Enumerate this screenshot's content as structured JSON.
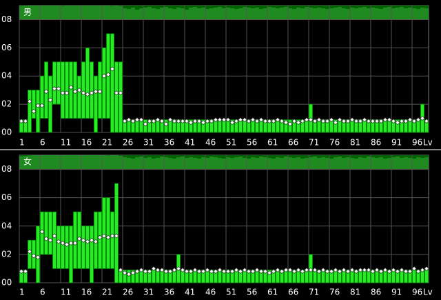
{
  "chart_data": [
    {
      "type": "range_bar",
      "title": "男",
      "x_unit": "Lv",
      "x": [
        1,
        2,
        3,
        4,
        5,
        6,
        7,
        8,
        9,
        10,
        11,
        12,
        13,
        14,
        15,
        16,
        17,
        18,
        19,
        20,
        21,
        22,
        23,
        24,
        25,
        26,
        27,
        28,
        29,
        30,
        31,
        32,
        33,
        34,
        35,
        36,
        37,
        38,
        39,
        40,
        41,
        42,
        43,
        44,
        45,
        46,
        47,
        48,
        49,
        50,
        51,
        52,
        53,
        54,
        55,
        56,
        57,
        58,
        59,
        60,
        61,
        62,
        63,
        64,
        65,
        66,
        67,
        68,
        69,
        70,
        71,
        72,
        73,
        74,
        75,
        76,
        77,
        78,
        79,
        80,
        81,
        82,
        83,
        84,
        85,
        86,
        87,
        88,
        89,
        90,
        91,
        92,
        93,
        94,
        95,
        96,
        97,
        98,
        99
      ],
      "xlim": [
        0.5,
        99.5
      ],
      "xticks": [
        1,
        6,
        11,
        16,
        21,
        26,
        31,
        36,
        41,
        46,
        51,
        56,
        61,
        66,
        71,
        76,
        81,
        86,
        91,
        96
      ],
      "ylim": [
        0,
        9
      ],
      "yticks": [
        {
          "value": 0,
          "label": "00"
        },
        {
          "value": 2,
          "label": "02"
        },
        {
          "value": 4,
          "label": "04"
        },
        {
          "value": 6,
          "label": "06"
        },
        {
          "value": 8,
          "label": "08"
        }
      ],
      "grid": true,
      "series": [
        {
          "color": "#22ee22",
          "low": [
            0,
            0,
            0,
            1,
            0,
            1,
            1,
            0,
            2,
            2,
            1,
            1,
            1,
            1,
            1,
            1,
            1,
            1,
            0,
            1,
            1,
            1,
            0,
            0,
            0,
            0,
            0,
            0,
            0,
            0,
            0,
            0,
            0,
            0,
            0,
            0,
            0,
            0,
            0,
            0,
            0,
            0,
            0,
            0,
            0,
            0,
            0,
            0,
            0,
            0,
            0,
            0,
            0,
            0,
            0,
            0,
            0,
            0,
            0,
            0,
            0,
            0,
            0,
            0,
            0,
            0,
            0,
            0,
            0,
            0,
            0,
            0,
            0,
            0,
            0,
            0,
            0,
            0,
            0,
            0,
            0,
            0,
            0,
            0,
            0,
            0,
            0,
            0,
            0,
            0,
            0,
            0,
            0,
            0,
            0,
            0,
            0,
            0,
            0
          ],
          "high": [
            0.9,
            0.9,
            3,
            3,
            3,
            4,
            5,
            4,
            5,
            5,
            5,
            5,
            5,
            5,
            4,
            5,
            6,
            5,
            4,
            5,
            6,
            7,
            7,
            5,
            5,
            0.9,
            0.9,
            0.9,
            0.9,
            0.9,
            0.9,
            0.9,
            0.9,
            0.9,
            0.9,
            0.9,
            0.9,
            0.9,
            0.9,
            0.9,
            0.9,
            0.9,
            0.9,
            0.9,
            0.9,
            0.9,
            0.9,
            0.9,
            0.9,
            0.9,
            0.9,
            0.9,
            0.9,
            0.9,
            0.9,
            0.9,
            0.9,
            0.9,
            0.9,
            0.9,
            0.9,
            0.9,
            0.9,
            0.9,
            0.9,
            0.9,
            0.9,
            0.9,
            0.9,
            0.9,
            2,
            0.9,
            0.9,
            0.9,
            0.9,
            0.9,
            0.9,
            0.9,
            0.9,
            0.9,
            0.9,
            0.9,
            0.9,
            0.9,
            0.9,
            0.9,
            0.9,
            0.9,
            0.9,
            0.9,
            0.9,
            0.9,
            0.9,
            0.9,
            0.9,
            0.9,
            0.9,
            2,
            0.9
          ]
        },
        {
          "color": "#ffffff",
          "values": [
            0.8,
            0.8,
            2.2,
            1.5,
            1.9,
            1.9,
            2.9,
            2.3,
            3.1,
            3.1,
            2.8,
            2.8,
            3.2,
            2.9,
            3.0,
            2.8,
            2.7,
            2.8,
            2.9,
            2.9,
            4.0,
            4.1,
            4.5,
            2.8,
            2.8,
            0.8,
            0.9,
            0.8,
            0.9,
            0.9,
            0.6,
            0.8,
            0.8,
            0.9,
            0.8,
            0.6,
            0.9,
            0.8,
            0.8,
            0.8,
            0.8,
            0.7,
            0.8,
            0.8,
            0.7,
            0.8,
            0.8,
            0.9,
            0.9,
            0.9,
            0.9,
            0.7,
            0.8,
            0.9,
            0.9,
            0.8,
            0.9,
            0.8,
            0.9,
            0.8,
            0.8,
            0.8,
            0.9,
            0.8,
            0.7,
            0.6,
            0.8,
            0.7,
            0.8,
            0.9,
            0.9,
            0.8,
            0.9,
            0.8,
            0.8,
            0.9,
            0.7,
            0.9,
            0.8,
            0.8,
            0.9,
            0.8,
            0.8,
            0.9,
            0.8,
            0.8,
            0.8,
            0.8,
            0.9,
            0.9,
            0.8,
            0.7,
            0.8,
            0.8,
            0.9,
            0.8,
            0.9,
            1.0,
            0.8
          ]
        }
      ],
      "histogram": {
        "color": "#1f8a1f",
        "hlim": [
          0,
          100
        ],
        "values": [
          96,
          98,
          100,
          100,
          100,
          100,
          100,
          100,
          100,
          100,
          98,
          100,
          100,
          100,
          100,
          100,
          100,
          100,
          100,
          100,
          100,
          100,
          98,
          100,
          96,
          80,
          75,
          85,
          70,
          80,
          85,
          90,
          80,
          75,
          85,
          90,
          80,
          75,
          85,
          80,
          70,
          85,
          90,
          80,
          85,
          75,
          80,
          85,
          90,
          80,
          85,
          80,
          75,
          80,
          90,
          85,
          80,
          85,
          75,
          80,
          90,
          85,
          80,
          85,
          90,
          80,
          75,
          85,
          80,
          90,
          85,
          80,
          85,
          80,
          75,
          80,
          85,
          90,
          80,
          75,
          85,
          80,
          85,
          90,
          80,
          85,
          80,
          75,
          85,
          90,
          80,
          85,
          90,
          80,
          85,
          80,
          75,
          85,
          80
        ]
      }
    },
    {
      "type": "range_bar",
      "title": "女",
      "x_unit": "Lv",
      "x": [
        1,
        2,
        3,
        4,
        5,
        6,
        7,
        8,
        9,
        10,
        11,
        12,
        13,
        14,
        15,
        16,
        17,
        18,
        19,
        20,
        21,
        22,
        23,
        24,
        25,
        26,
        27,
        28,
        29,
        30,
        31,
        32,
        33,
        34,
        35,
        36,
        37,
        38,
        39,
        40,
        41,
        42,
        43,
        44,
        45,
        46,
        47,
        48,
        49,
        50,
        51,
        52,
        53,
        54,
        55,
        56,
        57,
        58,
        59,
        60,
        61,
        62,
        63,
        64,
        65,
        66,
        67,
        68,
        69,
        70,
        71,
        72,
        73,
        74,
        75,
        76,
        77,
        78,
        79,
        80,
        81,
        82,
        83,
        84,
        85,
        86,
        87,
        88,
        89,
        90,
        91,
        92,
        93,
        94,
        95,
        96,
        97,
        98,
        99
      ],
      "xlim": [
        0.5,
        99.5
      ],
      "xticks": [
        1,
        6,
        11,
        16,
        21,
        26,
        31,
        36,
        41,
        46,
        51,
        56,
        61,
        66,
        71,
        76,
        81,
        86,
        91,
        96
      ],
      "ylim": [
        0,
        9
      ],
      "yticks": [
        {
          "value": 0,
          "label": "00"
        },
        {
          "value": 2,
          "label": "02"
        },
        {
          "value": 4,
          "label": "04"
        },
        {
          "value": 6,
          "label": "06"
        },
        {
          "value": 8,
          "label": "08"
        }
      ],
      "grid": true,
      "series": [
        {
          "color": "#22ee22",
          "low": [
            0,
            0,
            1,
            1,
            0,
            2,
            2,
            2,
            1,
            1,
            1,
            1,
            0,
            1,
            1,
            1,
            1,
            0,
            1,
            1,
            1,
            1,
            1,
            0,
            0,
            0,
            0,
            0,
            0,
            0,
            0,
            0,
            0,
            0,
            0,
            0,
            0,
            0,
            0,
            0,
            0,
            0,
            0,
            0,
            0,
            0,
            0,
            0,
            0,
            0,
            0,
            0,
            0,
            0,
            0,
            0,
            0,
            0,
            0,
            0,
            0,
            0,
            0,
            0,
            0,
            0,
            0,
            0,
            0,
            0,
            0,
            0,
            0,
            0,
            0,
            0,
            0,
            0,
            0,
            0,
            0,
            0,
            0,
            0,
            0,
            0,
            0,
            0,
            0,
            0,
            0,
            0,
            0,
            0,
            0,
            0,
            0,
            0,
            0
          ],
          "high": [
            0.9,
            0.9,
            3,
            3,
            4,
            5,
            5,
            5,
            5,
            4,
            4,
            4,
            4,
            5,
            5,
            4,
            4,
            4,
            5,
            5,
            6,
            6,
            5,
            7,
            0.9,
            0.9,
            0.9,
            0.9,
            0.9,
            0.9,
            0.9,
            0.9,
            0.9,
            0.9,
            0.9,
            0.9,
            0.9,
            0.9,
            2,
            0.9,
            0.9,
            0.9,
            0.9,
            0.9,
            0.9,
            0.9,
            0.9,
            0.9,
            0.9,
            0.9,
            0.9,
            0.9,
            0.9,
            0.9,
            0.9,
            0.9,
            0.9,
            0.9,
            0.9,
            0.9,
            0.9,
            0.9,
            0.9,
            0.9,
            0.9,
            0.9,
            0.9,
            0.9,
            0.9,
            0.9,
            2,
            0.9,
            0.9,
            0.9,
            0.9,
            0.9,
            0.9,
            0.9,
            0.9,
            0.9,
            0.9,
            0.9,
            0.9,
            0.9,
            0.9,
            0.9,
            0.9,
            0.9,
            0.9,
            0.9,
            0.9,
            0.9,
            0.9,
            0.9,
            0.9,
            0.9,
            0.9,
            0.9,
            0.9
          ]
        },
        {
          "color": "#ffffff",
          "values": [
            0.8,
            0.8,
            2.2,
            1.9,
            1.8,
            3.6,
            3.1,
            3.0,
            3.3,
            2.9,
            2.8,
            2.7,
            2.8,
            2.8,
            3.1,
            3.0,
            2.9,
            3.0,
            2.9,
            3.2,
            3.3,
            3.2,
            3.3,
            3.3,
            0.9,
            0.7,
            0.6,
            0.7,
            0.8,
            0.9,
            0.8,
            0.8,
            1.0,
            0.9,
            0.9,
            0.8,
            0.8,
            0.9,
            1.0,
            0.9,
            0.8,
            0.8,
            0.9,
            0.8,
            0.8,
            0.9,
            0.8,
            0.8,
            0.9,
            0.8,
            0.8,
            0.8,
            0.9,
            0.8,
            0.9,
            0.8,
            0.8,
            0.9,
            0.8,
            0.8,
            0.7,
            0.8,
            0.9,
            0.8,
            0.9,
            0.9,
            0.8,
            0.9,
            0.8,
            0.9,
            0.9,
            0.9,
            0.8,
            0.9,
            0.8,
            0.8,
            0.9,
            0.8,
            0.9,
            0.8,
            0.9,
            0.8,
            0.9,
            0.9,
            0.9,
            0.8,
            0.9,
            0.8,
            0.9,
            0.8,
            0.9,
            0.8,
            0.9,
            0.8,
            0.8,
            1.0,
            0.8,
            0.9,
            1.0
          ]
        }
      ],
      "histogram": {
        "color": "#1f8a1f",
        "hlim": [
          0,
          100
        ],
        "values": [
          92,
          95,
          98,
          100,
          100,
          100,
          100,
          100,
          100,
          100,
          100,
          100,
          100,
          100,
          100,
          100,
          100,
          100,
          100,
          100,
          100,
          98,
          100,
          100,
          95,
          85,
          80,
          75,
          85,
          90,
          80,
          85,
          75,
          80,
          90,
          85,
          80,
          75,
          85,
          90,
          80,
          85,
          80,
          75,
          85,
          80,
          90,
          85,
          80,
          75,
          85,
          80,
          85,
          90,
          80,
          75,
          85,
          80,
          90,
          85,
          80,
          75,
          85,
          80,
          90,
          85,
          80,
          85,
          75,
          80,
          85,
          90,
          80,
          85,
          80,
          75,
          85,
          90,
          80,
          85,
          80,
          75,
          85,
          80,
          90,
          85,
          80,
          85,
          75,
          80,
          85,
          90,
          80,
          85,
          80,
          75,
          85,
          80,
          85
        ]
      }
    }
  ]
}
